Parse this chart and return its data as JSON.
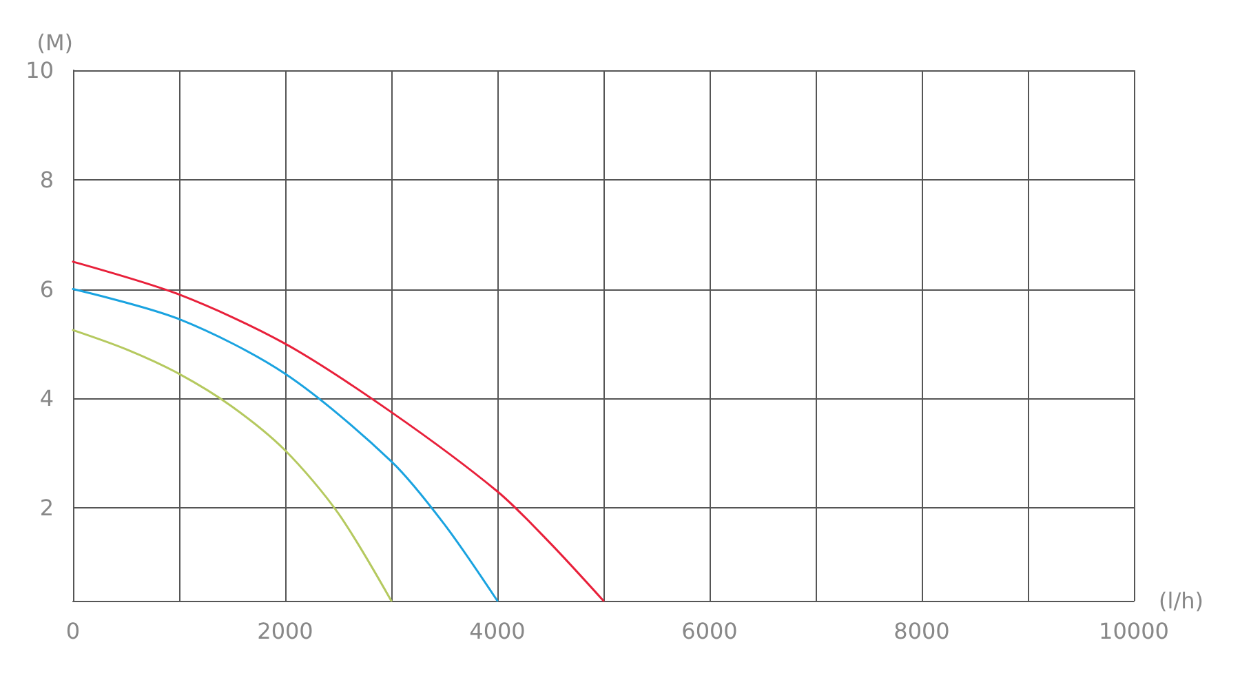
{
  "chart_data": {
    "type": "line",
    "xlabel": "(l/h)",
    "ylabel": "(M)",
    "xlim": [
      0,
      10000
    ],
    "xticks": [
      0,
      2000,
      4000,
      6000,
      8000,
      10000
    ],
    "ylim": [
      0.3,
      10
    ],
    "yticks": [
      2,
      4,
      6,
      8,
      10
    ],
    "grid": true,
    "marker": "none",
    "line_style": "solid",
    "series": [
      {
        "color": "#b5c95f",
        "x": [
          0,
          500,
          1000,
          1500,
          2000,
          2500,
          3000
        ],
        "values": [
          5.25,
          4.9,
          4.45,
          3.85,
          3.05,
          1.9,
          0.3
        ]
      },
      {
        "color": "#1aa3e0",
        "x": [
          0,
          1000,
          2000,
          3000,
          3500,
          4000
        ],
        "values": [
          6.0,
          5.45,
          4.45,
          2.85,
          1.7,
          0.3
        ]
      },
      {
        "color": "#e8203a",
        "x": [
          0,
          1000,
          2000,
          3000,
          4000,
          4500,
          5000
        ],
        "values": [
          6.5,
          5.9,
          5.0,
          3.75,
          2.3,
          1.35,
          0.3
        ]
      }
    ]
  }
}
